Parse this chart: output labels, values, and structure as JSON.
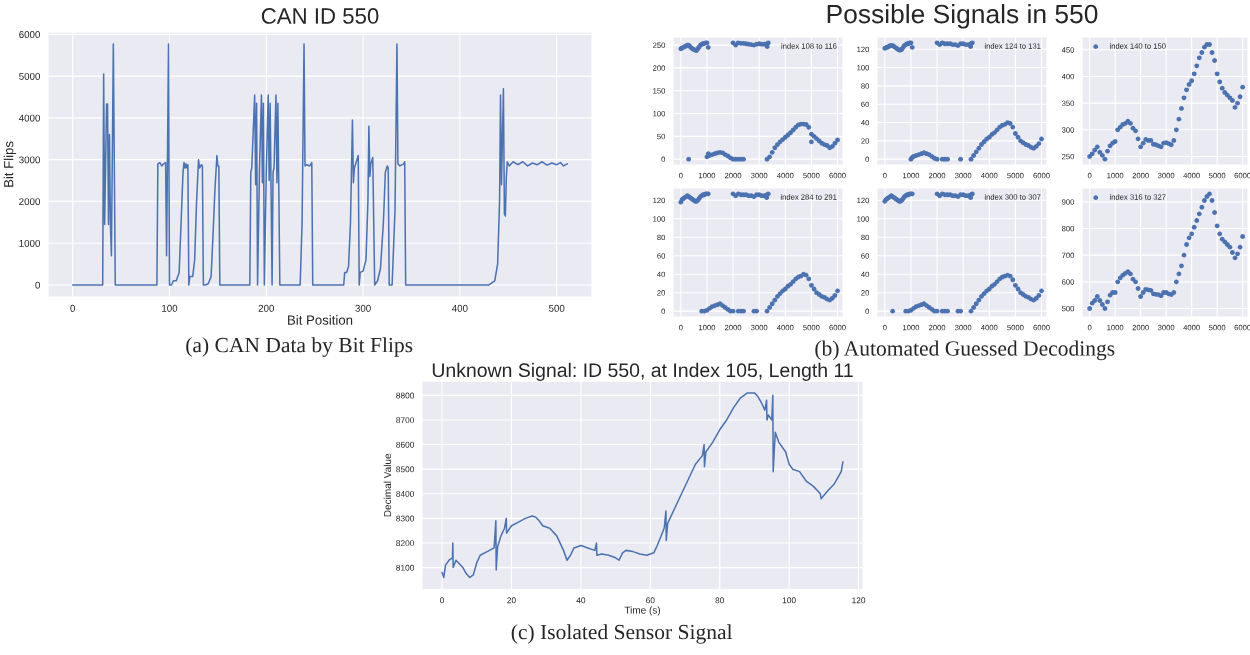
{
  "chart_data": [
    {
      "type": "line",
      "title": "CAN ID 550",
      "xlabel": "Bit Position",
      "ylabel": "Bit Flips",
      "xlim": [
        -25.5,
        536.5
      ],
      "ylim": [
        -288,
        6058
      ],
      "xticks": [
        0,
        100,
        200,
        300,
        400,
        500
      ],
      "yticks": [
        0,
        1000,
        2000,
        3000,
        4000,
        5000,
        6000
      ],
      "grid": true,
      "annotations": [
        "(a) CAN Data by Bit Flips"
      ],
      "series": [
        {
          "color": "#4c72b0",
          "x": [
            0,
            31,
            32,
            33,
            35,
            36,
            37,
            38,
            39,
            40,
            42,
            44,
            87,
            88,
            90,
            92,
            94,
            96,
            97,
            99,
            100,
            102,
            104,
            107,
            110,
            112,
            114,
            115,
            116,
            117,
            118,
            119,
            120,
            121,
            124,
            126,
            128,
            130,
            131,
            133,
            134,
            135,
            137,
            140,
            143,
            145,
            147,
            149,
            150,
            151,
            152,
            183,
            184,
            185,
            188,
            189,
            190,
            191,
            193,
            195,
            196,
            197,
            198,
            200,
            202,
            203,
            204,
            206,
            207,
            208,
            210,
            211,
            212,
            214,
            235,
            237,
            239,
            240,
            242,
            245,
            247,
            248,
            280,
            281,
            283,
            285,
            287,
            289,
            290,
            291,
            293,
            295,
            296,
            297,
            300,
            303,
            305,
            306,
            307,
            308,
            310,
            312,
            315,
            318,
            321,
            323,
            325,
            326,
            327,
            330,
            333,
            335,
            336,
            338,
            342,
            343,
            344,
            430,
            436,
            439,
            441,
            442,
            443,
            445,
            446,
            447,
            448,
            449,
            451,
            455,
            460,
            465,
            470,
            475,
            480,
            485,
            490,
            495,
            500,
            504,
            507,
            511
          ],
          "values": [
            0,
            0,
            5050,
            1450,
            4330,
            4330,
            1450,
            3600,
            1450,
            700,
            5770,
            0,
            0,
            2900,
            2930,
            2850,
            2900,
            2930,
            700,
            5770,
            0,
            0,
            100,
            100,
            300,
            1500,
            2700,
            2930,
            2800,
            2900,
            2800,
            2880,
            0,
            200,
            200,
            600,
            2000,
            3000,
            2800,
            2880,
            2850,
            0,
            0,
            30,
            200,
            1200,
            2300,
            3100,
            2850,
            2850,
            0,
            0,
            2700,
            2800,
            4550,
            2400,
            4350,
            0,
            2800,
            4550,
            2450,
            4350,
            0,
            2700,
            4550,
            2500,
            4350,
            0,
            2700,
            2800,
            4550,
            2450,
            4350,
            0,
            0,
            1500,
            5770,
            2850,
            2880,
            2850,
            2930,
            0,
            0,
            300,
            300,
            450,
            1500,
            3950,
            2450,
            2800,
            2950,
            3100,
            0,
            300,
            330,
            600,
            2000,
            3800,
            2600,
            2900,
            3050,
            0,
            100,
            400,
            1500,
            2700,
            2850,
            2800,
            0,
            0,
            1800,
            5770,
            2900,
            2850,
            2900,
            2950,
            0,
            0,
            100,
            500,
            2000,
            4550,
            2400,
            4700,
            1700,
            1650,
            2600,
            2950,
            2850,
            2950,
            2880,
            2950,
            2850,
            2920,
            2880,
            2950,
            2870,
            2920,
            2880,
            2930,
            2850,
            2900
          ]
        }
      ]
    },
    {
      "type": "scatter",
      "xlim": [
        -300,
        6210
      ],
      "ylim": [
        -12.75,
        267.75
      ],
      "xticks": [
        0,
        1000,
        2000,
        3000,
        4000,
        5000,
        6000
      ],
      "yticks": [
        0,
        50,
        100,
        150,
        200,
        250
      ],
      "grid": true,
      "legend": "top right",
      "marker": "circle",
      "series": [
        {
          "name": "index 108 to 116",
          "color": "#4c72b0",
          "x": [
            0,
            50,
            100,
            150,
            200,
            250,
            300,
            350,
            400,
            450,
            500,
            550,
            600,
            650,
            700,
            750,
            800,
            850,
            900,
            950,
            1000,
            1050,
            2000,
            2100,
            2200,
            2300,
            2400,
            2500,
            2600,
            2700,
            2800,
            2900,
            3000,
            3100,
            3200,
            3300,
            3350,
            300,
            1000,
            1050,
            1100,
            1200,
            1300,
            1400,
            1500,
            1600,
            1700,
            1800,
            1900,
            2000,
            2100,
            2200,
            2300,
            2400,
            3300,
            3400,
            3500,
            3600,
            3700,
            3800,
            3900,
            4000,
            4100,
            4200,
            4300,
            4400,
            4500,
            4600,
            4700,
            4800,
            4900,
            5000,
            5100,
            5200,
            5300,
            5400,
            5500,
            5600,
            5700,
            5800,
            5900,
            6000,
            5000
          ],
          "values": [
            242,
            244,
            245,
            247,
            248,
            250,
            250,
            247,
            244,
            242,
            240,
            239,
            238,
            242,
            246,
            250,
            252,
            253,
            254,
            255,
            255,
            245,
            255,
            250,
            255,
            254,
            254,
            253,
            252,
            251,
            250,
            252,
            253,
            252,
            252,
            253,
            255,
            0,
            5,
            12,
            8,
            10,
            12,
            14,
            15,
            14,
            10,
            7,
            3,
            0,
            0,
            0,
            0,
            0,
            0,
            5,
            15,
            25,
            32,
            38,
            43,
            48,
            53,
            58,
            64,
            70,
            75,
            77,
            77,
            76,
            70,
            55,
            50,
            45,
            40,
            35,
            32,
            30,
            25,
            28,
            35,
            42,
            38
          ]
        }
      ]
    },
    {
      "type": "scatter",
      "title": "Possible Signals in 550",
      "xlim": [
        -300,
        6210
      ],
      "ylim": [
        -6.35,
        133.35
      ],
      "xticks": [
        0,
        1000,
        2000,
        3000,
        4000,
        5000,
        6000
      ],
      "yticks": [
        0,
        20,
        40,
        60,
        80,
        100,
        120
      ],
      "grid": true,
      "legend": "top right",
      "marker": "circle",
      "series": [
        {
          "name": "index 124 to 131",
          "color": "#4c72b0",
          "x": [
            0,
            50,
            100,
            150,
            200,
            250,
            300,
            350,
            400,
            450,
            500,
            550,
            600,
            650,
            700,
            750,
            800,
            850,
            900,
            950,
            1000,
            1050,
            2000,
            2100,
            2200,
            2300,
            2400,
            2500,
            2600,
            2700,
            2800,
            2900,
            3000,
            3100,
            3200,
            3300,
            3350,
            1000,
            1050,
            1100,
            1200,
            1300,
            1400,
            1500,
            1600,
            1700,
            1800,
            1900,
            2000,
            2200,
            2300,
            2400,
            2900,
            3300,
            3400,
            3500,
            3600,
            3700,
            3800,
            3900,
            4000,
            4100,
            4200,
            4300,
            4400,
            4500,
            4600,
            4700,
            4800,
            4900,
            5000,
            5100,
            5200,
            5300,
            5400,
            5500,
            5600,
            5700,
            5800,
            5900,
            6000
          ],
          "values": [
            121,
            122,
            122,
            123,
            124,
            124,
            124,
            123,
            122,
            121,
            120,
            119,
            119,
            120,
            122,
            124,
            125,
            126,
            126,
            127,
            127,
            122,
            127,
            125,
            127,
            126,
            126,
            126,
            125,
            125,
            124,
            126,
            126,
            125,
            125,
            126,
            127,
            0,
            2,
            3,
            4,
            5,
            6,
            7,
            6,
            5,
            3,
            1,
            0,
            0,
            0,
            0,
            0,
            0,
            4,
            8,
            12,
            16,
            19,
            22,
            24,
            27,
            29,
            32,
            35,
            37,
            38,
            40,
            39,
            35,
            28,
            24,
            20,
            18,
            16,
            15,
            13,
            12,
            14,
            17,
            22
          ]
        }
      ]
    },
    {
      "type": "scatter",
      "xlim": [
        -300,
        6210
      ],
      "ylim": [
        234,
        474
      ],
      "xticks": [
        0,
        1000,
        2000,
        3000,
        4000,
        5000,
        6000
      ],
      "yticks": [
        250,
        300,
        350,
        400,
        450
      ],
      "grid": true,
      "legend": "top left",
      "marker": "circle",
      "series": [
        {
          "name": "index 140 to 150",
          "color": "#4c72b0",
          "x": [
            0,
            100,
            200,
            300,
            400,
            500,
            600,
            700,
            800,
            900,
            1000,
            1100,
            1200,
            1300,
            1400,
            1500,
            1600,
            1700,
            1800,
            1900,
            2000,
            2100,
            2200,
            2300,
            2400,
            2500,
            2600,
            2700,
            2800,
            2900,
            3000,
            3100,
            3200,
            3300,
            3400,
            3500,
            3600,
            3700,
            3800,
            3900,
            4000,
            4100,
            4200,
            4300,
            4400,
            4500,
            4600,
            4700,
            4800,
            4900,
            5000,
            5100,
            5200,
            5300,
            5400,
            5500,
            5600,
            5700,
            5800,
            5900,
            6000
          ],
          "values": [
            250,
            255,
            262,
            268,
            258,
            252,
            245,
            260,
            270,
            275,
            278,
            300,
            305,
            310,
            312,
            316,
            312,
            303,
            298,
            283,
            268,
            275,
            282,
            280,
            280,
            273,
            272,
            270,
            268,
            275,
            276,
            274,
            272,
            280,
            300,
            320,
            340,
            360,
            375,
            385,
            392,
            405,
            420,
            435,
            445,
            455,
            460,
            460,
            445,
            430,
            405,
            390,
            378,
            370,
            365,
            360,
            355,
            342,
            350,
            362,
            380
          ]
        }
      ]
    },
    {
      "type": "scatter",
      "xlim": [
        -300,
        6210
      ],
      "ylim": [
        -6.35,
        133.35
      ],
      "xticks": [
        0,
        1000,
        2000,
        3000,
        4000,
        5000,
        6000
      ],
      "yticks": [
        0,
        20,
        40,
        60,
        80,
        100,
        120
      ],
      "grid": true,
      "legend": "top right",
      "marker": "circle",
      "series": [
        {
          "name": "index 284 to 291",
          "color": "#4c72b0",
          "x": [
            0,
            50,
            100,
            150,
            200,
            250,
            300,
            350,
            400,
            450,
            500,
            550,
            600,
            650,
            700,
            750,
            800,
            850,
            900,
            950,
            1000,
            1050,
            2000,
            2100,
            2200,
            2300,
            2400,
            2500,
            2600,
            2700,
            2800,
            2900,
            3000,
            3100,
            3200,
            3300,
            3350,
            800,
            900,
            1000,
            1100,
            1200,
            1300,
            1400,
            1500,
            1600,
            1700,
            1800,
            1900,
            2000,
            2200,
            2300,
            2400,
            2800,
            2900,
            3300,
            3400,
            3500,
            3600,
            3700,
            3800,
            3900,
            4000,
            4100,
            4200,
            4300,
            4400,
            4500,
            4600,
            4700,
            4800,
            4900,
            5000,
            5100,
            5200,
            5300,
            5400,
            5500,
            5600,
            5700,
            5800,
            5900,
            6000
          ],
          "values": [
            118,
            121,
            122,
            123,
            124,
            125,
            124,
            123,
            122,
            121,
            120,
            119,
            119,
            120,
            122,
            124,
            125,
            126,
            126,
            127,
            127,
            127,
            127,
            125,
            127,
            126,
            126,
            126,
            125,
            125,
            124,
            126,
            126,
            125,
            125,
            126,
            127,
            0,
            0,
            1,
            3,
            5,
            6,
            7,
            8,
            6,
            4,
            2,
            0,
            0,
            0,
            0,
            0,
            0,
            0,
            0,
            4,
            8,
            12,
            16,
            19,
            22,
            24,
            27,
            29,
            32,
            35,
            37,
            38,
            40,
            39,
            35,
            28,
            24,
            20,
            18,
            16,
            15,
            13,
            12,
            14,
            17,
            22
          ]
        }
      ]
    },
    {
      "type": "scatter",
      "xlim": [
        -300,
        6210
      ],
      "ylim": [
        -6.35,
        133.35
      ],
      "xticks": [
        0,
        1000,
        2000,
        3000,
        4000,
        5000,
        6000
      ],
      "yticks": [
        0,
        20,
        40,
        60,
        80,
        100,
        120
      ],
      "grid": true,
      "legend": "top right",
      "marker": "circle",
      "annotations": [
        "(b) Automated Guessed Decodings"
      ],
      "series": [
        {
          "name": "index 300 to 307",
          "color": "#4c72b0",
          "x": [
            0,
            50,
            100,
            150,
            200,
            250,
            300,
            350,
            400,
            450,
            500,
            550,
            600,
            650,
            700,
            750,
            800,
            850,
            900,
            950,
            1000,
            1050,
            2000,
            2100,
            2200,
            2300,
            2400,
            2500,
            2600,
            2700,
            2800,
            2900,
            3000,
            3100,
            3200,
            3300,
            3350,
            300,
            800,
            900,
            1000,
            1100,
            1200,
            1300,
            1400,
            1500,
            1600,
            1700,
            1800,
            1900,
            2000,
            2200,
            2300,
            2400,
            2800,
            2900,
            3300,
            3400,
            3500,
            3600,
            3700,
            3800,
            3900,
            4000,
            4100,
            4200,
            4300,
            4400,
            4500,
            4600,
            4700,
            4800,
            4900,
            5000,
            5100,
            5200,
            5300,
            5400,
            5500,
            5600,
            5700,
            5800,
            5900,
            6000
          ],
          "values": [
            119,
            121,
            122,
            123,
            124,
            125,
            124,
            123,
            122,
            121,
            120,
            119,
            119,
            120,
            122,
            124,
            125,
            126,
            126,
            127,
            127,
            127,
            127,
            125,
            127,
            126,
            126,
            126,
            125,
            125,
            124,
            126,
            126,
            125,
            125,
            126,
            127,
            0,
            0,
            0,
            1,
            3,
            5,
            6,
            7,
            8,
            6,
            4,
            2,
            0,
            0,
            0,
            0,
            0,
            0,
            0,
            0,
            4,
            8,
            12,
            16,
            19,
            22,
            24,
            27,
            29,
            32,
            35,
            37,
            38,
            39,
            38,
            34,
            28,
            24,
            20,
            18,
            16,
            15,
            13,
            12,
            14,
            17,
            22
          ]
        }
      ]
    },
    {
      "type": "scatter",
      "xlim": [
        -300,
        6210
      ],
      "ylim": [
        468,
        952
      ],
      "xticks": [
        0,
        1000,
        2000,
        3000,
        4000,
        5000,
        6000
      ],
      "yticks": [
        500,
        600,
        700,
        800,
        900
      ],
      "grid": true,
      "legend": "top left",
      "marker": "circle",
      "series": [
        {
          "name": "index 316 to 327",
          "color": "#4c72b0",
          "x": [
            0,
            100,
            200,
            300,
            400,
            500,
            600,
            700,
            800,
            900,
            1000,
            1100,
            1200,
            1300,
            1400,
            1500,
            1600,
            1700,
            1800,
            1900,
            2000,
            2100,
            2200,
            2300,
            2400,
            2500,
            2600,
            2700,
            2800,
            2900,
            3000,
            3100,
            3200,
            3300,
            3400,
            3500,
            3600,
            3700,
            3800,
            3900,
            4000,
            4100,
            4200,
            4300,
            4400,
            4500,
            4600,
            4700,
            4800,
            4900,
            5000,
            5100,
            5200,
            5300,
            5400,
            5500,
            5600,
            5700,
            5800,
            5900,
            6000
          ],
          "values": [
            500,
            520,
            530,
            545,
            530,
            515,
            500,
            525,
            550,
            560,
            560,
            600,
            615,
            625,
            632,
            638,
            630,
            610,
            600,
            575,
            545,
            560,
            572,
            570,
            568,
            555,
            553,
            552,
            548,
            560,
            560,
            555,
            552,
            560,
            600,
            630,
            660,
            700,
            740,
            765,
            780,
            805,
            830,
            855,
            880,
            905,
            920,
            930,
            905,
            860,
            810,
            780,
            760,
            750,
            740,
            730,
            710,
            690,
            705,
            730,
            770
          ]
        }
      ]
    },
    {
      "type": "line",
      "title": "Unknown Signal: ID 550, at Index 105, Length 11",
      "xlabel": "Time (s)",
      "ylabel": "Decimal Value",
      "xlim": [
        -5.78,
        121.28
      ],
      "ylim": [
        8011,
        8858
      ],
      "xticks": [
        0,
        20,
        40,
        60,
        80,
        100,
        120
      ],
      "yticks": [
        8100,
        8200,
        8300,
        8400,
        8500,
        8600,
        8700,
        8800
      ],
      "grid": true,
      "annotations": [
        "(c) Isolated Sensor Signal"
      ],
      "series": [
        {
          "color": "#4c72b0",
          "x": [
            0,
            0.5,
            1,
            2,
            3,
            3.1,
            3.2,
            4,
            6,
            7,
            8,
            9,
            10,
            11,
            13,
            15,
            15.5,
            15.6,
            16,
            17,
            18,
            18.5,
            18.6,
            20,
            22,
            24,
            26,
            27,
            28,
            29,
            31,
            33,
            35,
            36,
            37,
            38,
            40,
            42,
            44,
            44.5,
            44.6,
            46,
            48,
            50,
            51,
            52,
            53,
            55,
            57,
            59,
            61,
            62,
            64,
            64.5,
            64.6,
            65,
            67,
            69,
            71,
            73,
            75,
            75.5,
            75.6,
            76,
            78,
            80,
            82,
            84,
            86,
            88,
            90,
            91,
            92,
            93,
            93.5,
            93.6,
            94,
            95,
            95.3,
            95.4,
            96,
            97,
            99,
            100,
            101,
            103,
            105,
            107,
            109,
            109.2,
            111,
            113,
            115,
            115.5
          ],
          "values": [
            8080,
            8060,
            8110,
            8130,
            8140,
            8200,
            8100,
            8130,
            8100,
            8075,
            8060,
            8070,
            8120,
            8150,
            8165,
            8180,
            8290,
            8090,
            8185,
            8230,
            8260,
            8300,
            8240,
            8270,
            8285,
            8300,
            8310,
            8305,
            8290,
            8270,
            8260,
            8230,
            8170,
            8130,
            8150,
            8180,
            8190,
            8180,
            8170,
            8200,
            8150,
            8155,
            8150,
            8140,
            8130,
            8160,
            8170,
            8165,
            8155,
            8150,
            8160,
            8190,
            8260,
            8330,
            8210,
            8280,
            8340,
            8400,
            8460,
            8520,
            8555,
            8600,
            8510,
            8570,
            8610,
            8660,
            8700,
            8750,
            8790,
            8810,
            8810,
            8795,
            8770,
            8740,
            8780,
            8700,
            8720,
            8700,
            8800,
            8490,
            8650,
            8610,
            8570,
            8520,
            8500,
            8490,
            8450,
            8430,
            8400,
            8380,
            8410,
            8440,
            8490,
            8530
          ]
        }
      ]
    }
  ]
}
